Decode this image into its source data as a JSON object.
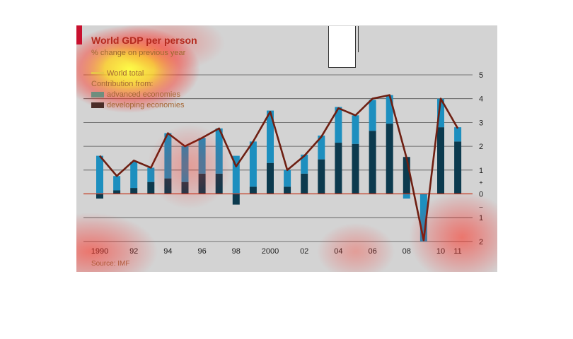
{
  "chart_data": {
    "type": "bar",
    "title": "World GDP per person",
    "subtitle": "% change on previous year",
    "legend": {
      "line_label": "World total",
      "group_label": "Contribution from:",
      "advanced_label": "advanced economies",
      "developing_label": "developing economies",
      "placement": "top-left"
    },
    "source": "Source: IMF",
    "x": [
      1990,
      1991,
      1992,
      1993,
      1994,
      1995,
      1996,
      1997,
      1998,
      1999,
      2000,
      2001,
      2002,
      2003,
      2004,
      2005,
      2006,
      2007,
      2008,
      2009,
      2010,
      2011
    ],
    "x_tick_labels": [
      "1990",
      "92",
      "94",
      "96",
      "98",
      "2000",
      "02",
      "04",
      "06",
      "08",
      "10",
      "11"
    ],
    "x_tick_years": [
      1990,
      1992,
      1994,
      1996,
      1998,
      2000,
      2002,
      2004,
      2006,
      2008,
      2010,
      2011
    ],
    "y_tick_values": [
      5,
      4,
      3,
      2,
      1,
      0,
      -1,
      -2
    ],
    "y_tick_labels": [
      "5",
      "4",
      "3",
      "2",
      "1",
      "0",
      "1",
      "2"
    ],
    "y_sign_plus": "+",
    "y_sign_minus": "–",
    "ylim": [
      -2,
      5
    ],
    "grid": true,
    "series": [
      {
        "name": "advanced economies",
        "values": [
          1.6,
          0.6,
          1.1,
          0.6,
          1.9,
          1.5,
          1.5,
          1.9,
          1.6,
          1.9,
          2.2,
          0.7,
          0.8,
          1.0,
          1.5,
          1.2,
          1.3,
          1.2,
          -0.2,
          -2.0,
          1.2,
          0.6
        ]
      },
      {
        "name": "developing economies",
        "values": [
          -0.2,
          0.15,
          0.25,
          0.5,
          0.65,
          0.5,
          0.85,
          0.85,
          -0.45,
          0.3,
          1.3,
          0.3,
          0.85,
          1.45,
          2.15,
          2.1,
          2.65,
          2.95,
          1.55,
          0.0,
          2.8,
          2.2
        ]
      },
      {
        "name": "World total",
        "values": [
          1.6,
          0.75,
          1.4,
          1.1,
          2.55,
          2.0,
          2.35,
          2.75,
          1.15,
          2.2,
          3.45,
          1.0,
          1.6,
          2.4,
          3.6,
          3.3,
          4.0,
          4.15,
          1.5,
          -1.95,
          4.0,
          2.75
        ]
      }
    ],
    "colors": {
      "advanced": "#1d8fbf",
      "developing": "#0c3a4e",
      "world_line": "#6e1f12",
      "zero_line": "#c23b22",
      "grid": "#555555",
      "panel": "#d3d3d3"
    }
  }
}
